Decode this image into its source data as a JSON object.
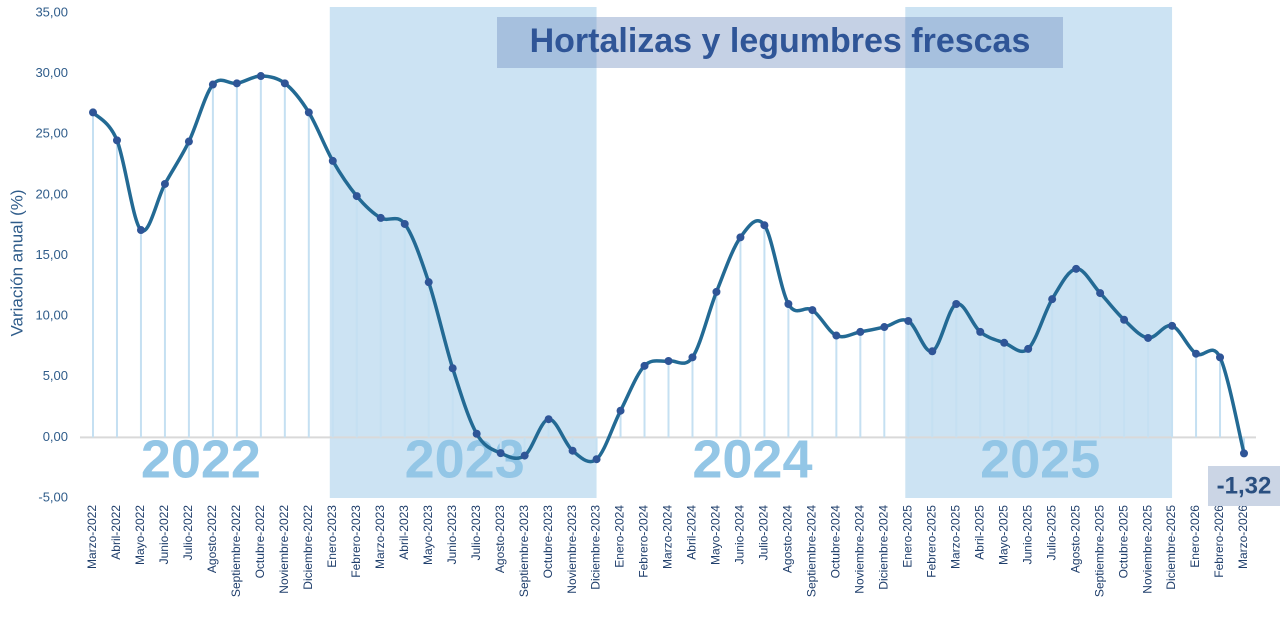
{
  "chart_data": {
    "type": "line",
    "title": "Hortalizas y legumbres frescas",
    "y_label": "Variación anual (%)",
    "categories": [
      "Marzo-2022",
      "Abril-2022",
      "Mayo-2022",
      "Junio-2022",
      "Julio-2022",
      "Agosto-2022",
      "Septiembre-2022",
      "Octubre-2022",
      "Noviembre-2022",
      "Diciembre-2022",
      "Enero-2023",
      "Febrero-2023",
      "Marzo-2023",
      "Abril-2023",
      "Mayo-2023",
      "Junio-2023",
      "Julio-2023",
      "Agosto-2023",
      "Septiembre-2023",
      "Octubre-2023",
      "Noviembre-2023",
      "Diciembre-2023",
      "Enero-2024",
      "Febrero-2024",
      "Marzo-2024",
      "Abril-2024",
      "Mayo-2024",
      "Junio-2024",
      "Julio-2024",
      "Agosto-2024",
      "Septiembre-2024",
      "Octubre-2024",
      "Noviembre-2024",
      "Diciembre-2024",
      "Enero-2025",
      "Febrero-2025",
      "Marzo-2025",
      "Abril-2025",
      "Mayo-2025",
      "Junio-2025",
      "Julio-2025",
      "Agosto-2025",
      "Septiembre-2025",
      "Octubre-2025",
      "Noviembre-2025",
      "Diciembre-2025",
      "Enero-2026",
      "Febrero-2026",
      "Marzo-2026"
    ],
    "values": [
      26.8,
      24.5,
      17.1,
      20.9,
      24.4,
      29.1,
      29.2,
      29.8,
      29.2,
      26.8,
      22.8,
      19.9,
      18.1,
      17.6,
      12.8,
      5.7,
      0.3,
      -1.3,
      -1.5,
      1.5,
      -1.1,
      -1.8,
      2.2,
      5.9,
      6.3,
      6.6,
      12.0,
      16.5,
      17.5,
      11.0,
      10.5,
      8.4,
      8.7,
      9.1,
      9.6,
      7.1,
      11.0,
      8.7,
      7.8,
      7.3,
      11.4,
      13.9,
      11.9,
      9.7,
      8.2,
      9.2,
      6.9,
      6.6,
      -1.32
    ],
    "value_labels": [
      null,
      null,
      null,
      null,
      null,
      null,
      null,
      null,
      null,
      null,
      null,
      null,
      null,
      null,
      null,
      null,
      null,
      null,
      null,
      null,
      null,
      null,
      null,
      null,
      null,
      null,
      null,
      null,
      null,
      null,
      null,
      null,
      null,
      null,
      null,
      null,
      null,
      null,
      null,
      null,
      null,
      null,
      null,
      null,
      null,
      null,
      null,
      null,
      "-1,32"
    ],
    "color": "#236a94",
    "ylim": [
      -5,
      35
    ],
    "yticks": [
      {
        "value": -5,
        "label": "-5,00"
      },
      {
        "value": 0,
        "label": "0,00"
      },
      {
        "value": 5,
        "label": "5,00"
      },
      {
        "value": 10,
        "label": "10,00"
      },
      {
        "value": 15,
        "label": "15,00"
      },
      {
        "value": 20,
        "label": "20,00"
      },
      {
        "value": 25,
        "label": "25,00"
      },
      {
        "value": 30,
        "label": "30,00"
      },
      {
        "value": 35,
        "label": "35,00"
      }
    ],
    "annotations": [
      {
        "text": "2022",
        "shaded": false
      },
      {
        "text": "2023",
        "shaded": true
      },
      {
        "text": "2024",
        "shaded": false
      },
      {
        "text": "2025",
        "shaded": true
      }
    ]
  }
}
